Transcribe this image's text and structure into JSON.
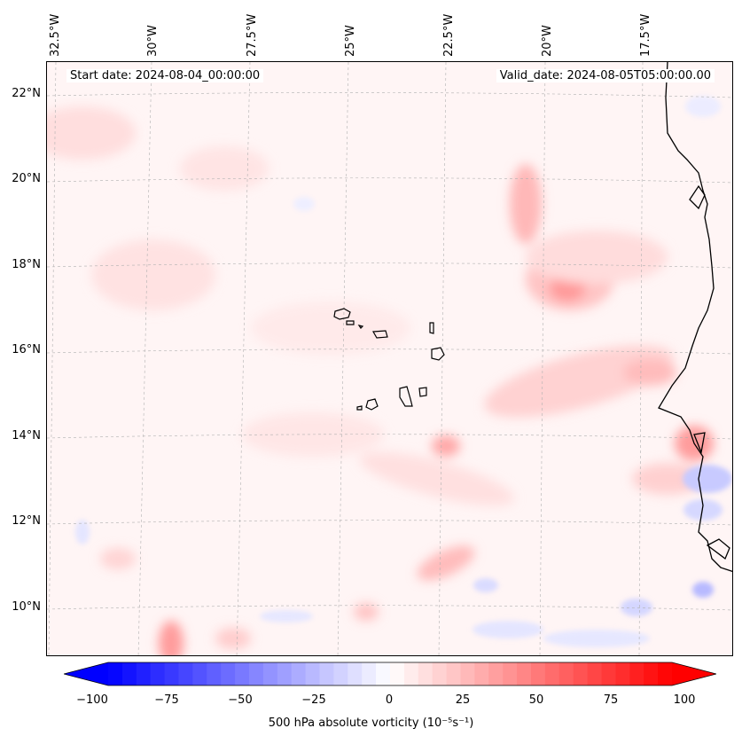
{
  "map": {
    "header": {
      "start_date": "Start date: 2024-08-04_00:00:00",
      "valid_date": "Valid_date: 2024-08-05T05:00:00.00"
    },
    "lon_labels": [
      "32.5°W",
      "30°W",
      "27.5°W",
      "25°W",
      "22.5°W",
      "20°W",
      "17.5°W"
    ],
    "lat_labels": [
      "22°N",
      "20°N",
      "18°N",
      "16°N",
      "14°N",
      "12°N",
      "10°N"
    ],
    "colorbar": {
      "ticks": [
        "−100",
        "−75",
        "−50",
        "−25",
        "0",
        "25",
        "50",
        "75",
        "100"
      ],
      "label": "500 hPa absolute vorticity (10⁻⁵s⁻¹)",
      "min": -100,
      "max": 100,
      "negative_color": "#0000ff",
      "positive_color": "#ff0000"
    }
  }
}
